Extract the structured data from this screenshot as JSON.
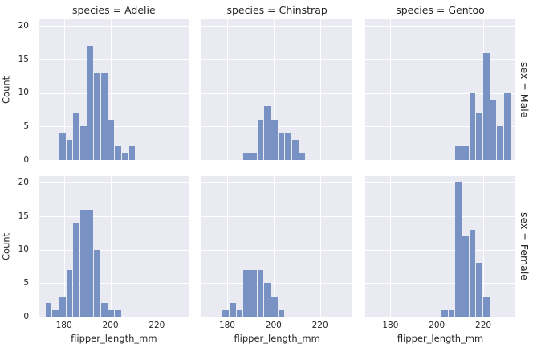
{
  "chart_data": {
    "type": "bar",
    "subtype": "faceted-histogram",
    "figure_title": "",
    "col_titles": [
      "species = Adelie",
      "species = Chinstrap",
      "species = Gentoo"
    ],
    "row_titles": [
      "sex = Male",
      "sex = Female"
    ],
    "xlabel": "flipper_length_mm",
    "ylabel": "Count",
    "x_ticks": [
      180,
      200,
      220
    ],
    "y_ticks": [
      0,
      5,
      10,
      15,
      20
    ],
    "xlim": [
      169.05,
      233.95
    ],
    "ylim": [
      0,
      21
    ],
    "bin_width": 3,
    "grid": true,
    "legend": false,
    "facets": [
      {
        "row": "Male",
        "col": "Adelie",
        "bin_start": 178,
        "counts": [
          4,
          3,
          7,
          5,
          17,
          13,
          13,
          6,
          2,
          1,
          2
        ]
      },
      {
        "row": "Male",
        "col": "Chinstrap",
        "bin_start": 187,
        "counts": [
          1,
          1,
          6,
          8,
          6,
          4,
          4,
          3,
          1
        ]
      },
      {
        "row": "Male",
        "col": "Gentoo",
        "bin_start": 208,
        "counts": [
          2,
          2,
          10,
          7,
          16,
          9,
          5,
          10
        ]
      },
      {
        "row": "Female",
        "col": "Adelie",
        "bin_start": 172,
        "counts": [
          2,
          1,
          3,
          7,
          14,
          16,
          16,
          10,
          2,
          1,
          1
        ]
      },
      {
        "row": "Female",
        "col": "Chinstrap",
        "bin_start": 178,
        "counts": [
          1,
          2,
          1,
          7,
          7,
          7,
          5,
          3,
          1
        ]
      },
      {
        "row": "Female",
        "col": "Gentoo",
        "bin_start": 202,
        "counts": [
          1,
          1,
          20,
          12,
          13,
          8,
          3
        ]
      }
    ],
    "colors": {
      "bar_fill": "#7893c3",
      "panel_bg": "#eaeaf2",
      "gridline": "#ffffff",
      "text": "#262626",
      "figure_bg": "#ffffff"
    }
  }
}
